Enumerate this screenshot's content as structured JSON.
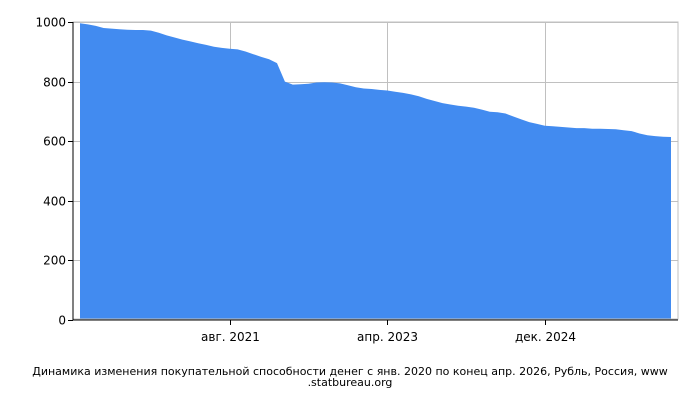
{
  "chart_data": {
    "type": "area",
    "title": "Динамика изменения покупательной способности денег с янв. 2020 по конец апр. 2026, Рубль, Россия, www.statbureau.org",
    "title_lines": [
      "Динамика изменения покупательной способности денег с янв. 2020 по конец апр. 2026, Рубль, Россия, www",
      ".statbureau.org"
    ],
    "xlabel": "",
    "ylabel": "",
    "x_start": "2020-01",
    "x_end": "2026-04",
    "ylim": [
      0,
      1000
    ],
    "y_ticks": [
      0,
      200,
      400,
      600,
      800,
      1000
    ],
    "x_ticks": [
      {
        "label": "авг. 2021",
        "date": "2021-08"
      },
      {
        "label": "апр. 2023",
        "date": "2023-04"
      },
      {
        "label": "дек. 2024",
        "date": "2024-12"
      }
    ],
    "grid": true,
    "fill_color": "#428bf0",
    "series": [
      {
        "x": [
          "2020-01",
          "2020-02",
          "2020-03",
          "2020-04",
          "2020-05",
          "2020-06",
          "2020-07",
          "2020-08",
          "2020-09",
          "2020-10",
          "2020-11",
          "2020-12",
          "2021-01",
          "2021-02",
          "2021-03",
          "2021-04",
          "2021-05",
          "2021-06",
          "2021-07",
          "2021-08",
          "2021-09",
          "2021-10",
          "2021-11",
          "2021-12",
          "2022-01",
          "2022-02",
          "2022-03",
          "2022-04",
          "2022-05",
          "2022-06",
          "2022-07",
          "2022-08",
          "2022-09",
          "2022-10",
          "2022-11",
          "2022-12",
          "2023-01",
          "2023-02",
          "2023-03",
          "2023-04",
          "2023-05",
          "2023-06",
          "2023-07",
          "2023-08",
          "2023-09",
          "2023-10",
          "2023-11",
          "2023-12",
          "2024-01",
          "2024-02",
          "2024-03",
          "2024-04",
          "2024-05",
          "2024-06",
          "2024-07",
          "2024-08",
          "2024-09",
          "2024-10",
          "2024-11",
          "2024-12",
          "2025-01",
          "2025-02",
          "2025-03",
          "2025-04",
          "2025-05",
          "2025-06",
          "2025-07",
          "2025-08",
          "2025-09",
          "2025-10",
          "2025-11",
          "2025-12",
          "2026-01",
          "2026-02",
          "2026-03",
          "2026-04"
        ],
        "values": [
          996,
          992,
          987,
          980,
          978,
          976,
          974,
          973,
          973,
          971,
          964,
          955,
          948,
          941,
          935,
          929,
          923,
          917,
          913,
          910,
          908,
          901,
          892,
          883,
          875,
          862,
          800,
          790,
          791,
          793,
          797,
          798,
          797,
          794,
          788,
          781,
          777,
          775,
          772,
          770,
          766,
          762,
          757,
          751,
          742,
          735,
          728,
          723,
          719,
          716,
          712,
          706,
          699,
          697,
          693,
          683,
          673,
          664,
          658,
          652,
          650,
          648,
          646,
          644,
          644,
          642,
          642,
          641,
          640,
          637,
          634,
          626,
          620,
          617,
          615,
          614
        ]
      }
    ]
  }
}
